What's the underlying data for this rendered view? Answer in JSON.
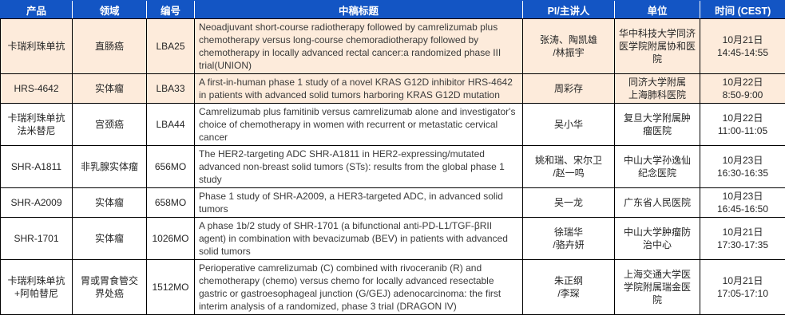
{
  "colors": {
    "header_bg": "#1355C4",
    "header_text": "#FFFFFF",
    "highlight_row_bg": "#FDEBDB",
    "row_bg": "#FFFFFF",
    "border": "#000000",
    "body_text": "#262626"
  },
  "table": {
    "columns": [
      {
        "key": "product",
        "label": "产品"
      },
      {
        "key": "area",
        "label": "领域"
      },
      {
        "key": "code",
        "label": "编号"
      },
      {
        "key": "title",
        "label": "中稿标题"
      },
      {
        "key": "pi",
        "label": "PI/主讲人"
      },
      {
        "key": "org",
        "label": "单位"
      },
      {
        "key": "time",
        "label": "时间 (CEST)"
      }
    ],
    "rows": [
      {
        "highlighted": true,
        "product": "卡瑞利珠单抗",
        "area": "直肠癌",
        "code": "LBA25",
        "title": "Neoadjuvant short-course radiotherapy followed by camrelizumab plus chemotherapy versus long-course chemoradiotherapy followed by chemotherapy in locally advanced rectal cancer:a randomized phase III trial(UNION)",
        "pi": "张涛、陶凯雄\n/林振宇",
        "org": "华中科技大学同济医学院附属协和医院",
        "time": "10月21日\n14:45-14:55"
      },
      {
        "highlighted": true,
        "product": "HRS-4642",
        "area": "实体瘤",
        "code": "LBA33",
        "title": "A first-in-human phase 1 study of a novel KRAS G12D inhibitor HRS-4642 in patients with advanced solid tumors harboring KRAS G12D mutation",
        "pi": "周彩存",
        "org": "同济大学附属\n上海肺科医院",
        "time": "10月22日\n8:50-9:00"
      },
      {
        "highlighted": false,
        "product": "卡瑞利珠单抗\n法米替尼",
        "area": "宫颈癌",
        "code": "LBA44",
        "title": "Camrelizumab plus famitinib versus camrelizumab alone and investigator's choice of chemotherapy in women with recurrent or metastatic cervical cancer",
        "pi": "吴小华",
        "org": "复旦大学附属肿\n瘤医院",
        "time": "10月22日\n11:00-11:05"
      },
      {
        "highlighted": false,
        "product": "SHR-A1811",
        "area": "非乳腺实体瘤",
        "code": "656MO",
        "title": "The HER2-targeting ADC SHR-A1811 in HER2-expressing/mutated advanced non-breast solid tumors (STs): results from the global phase 1 study",
        "pi": "姚和瑞、宋尔卫\n/赵一鸣",
        "org": "中山大学孙逸仙\n纪念医院",
        "time": "10月23日\n16:30-16:35"
      },
      {
        "highlighted": false,
        "product": "SHR-A2009",
        "area": "实体瘤",
        "code": "658MO",
        "title": "Phase 1 study of SHR-A2009, a HER3-targeted ADC, in advanced solid tumors",
        "pi": "吴一龙",
        "org": "广东省人民医院",
        "time": "10月23日\n16:45-16:50"
      },
      {
        "highlighted": false,
        "product": "SHR-1701",
        "area": "实体瘤",
        "code": "1026MO",
        "title": "A phase 1b/2 study of SHR-1701 (a bifunctional anti-PD-L1/TGF-βRII agent) in combination with bevacizumab (BEV) in patients with advanced solid tumors",
        "pi": "徐瑞华\n/骆卉妍",
        "org": "中山大学肿瘤防\n治中心",
        "time": "10月21日\n17:30-17:35"
      },
      {
        "highlighted": false,
        "product": "卡瑞利珠单抗\n+阿帕替尼",
        "area": "胃或胃食管交\n界处癌",
        "code": "1512MO",
        "title": "Perioperative camrelizumab (C) combined with rivoceranib (R) and chemotherapy (chemo) versus chemo for locally advanced resectable gastric or gastroesophageal junction (G/GEJ) adenocarcinoma: the first interim analysis of a randomized, phase 3 trial (DRAGON IV)",
        "pi": "朱正纲\n/李琛",
        "org": "上海交通大学医\n学院附属瑞金医\n院",
        "time": "10月21日\n17:05-17:10"
      }
    ]
  }
}
